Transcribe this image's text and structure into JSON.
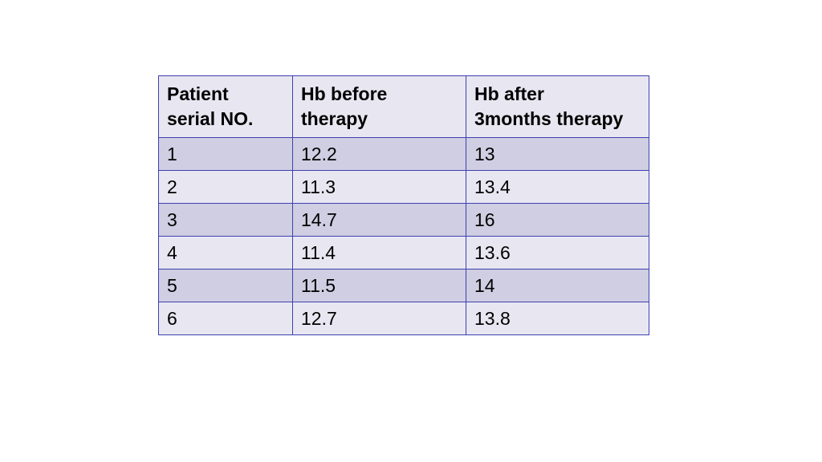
{
  "table": {
    "headers": [
      {
        "line1": "Patient",
        "line2": "serial NO."
      },
      {
        "line1": "Hb before",
        "line2": "therapy"
      },
      {
        "line1": "Hb after",
        "line2": "3months therapy"
      }
    ],
    "rows": [
      [
        "1",
        "12.2",
        "13"
      ],
      [
        "2",
        "11.3",
        "13.4"
      ],
      [
        "3",
        "14.7",
        "16"
      ],
      [
        "4",
        "11.4",
        "13.6"
      ],
      [
        "5",
        "11.5",
        "14"
      ],
      [
        "6",
        "12.7",
        "13.8"
      ]
    ]
  },
  "colors": {
    "border": "#3f3fb2",
    "header_fill": "#e8e7f1",
    "row_fill_dark": "#cfcee2",
    "row_fill_light": "#e8e7f1"
  }
}
